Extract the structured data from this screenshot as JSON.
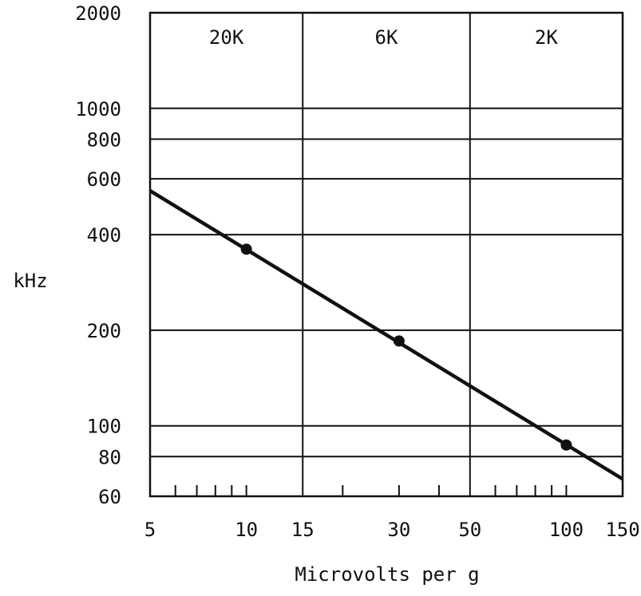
{
  "chart_data": {
    "type": "line",
    "xlabel": "Microvolts per g",
    "ylabel": "kHz",
    "xscale": "log",
    "yscale": "log",
    "xlim": [
      5,
      150
    ],
    "ylim": [
      60,
      2000
    ],
    "grid": true,
    "x_ticks": [
      {
        "value": 5,
        "label": "5"
      },
      {
        "value": 10,
        "label": "10"
      },
      {
        "value": 15,
        "label": "15"
      },
      {
        "value": 30,
        "label": "30"
      },
      {
        "value": 50,
        "label": "50"
      },
      {
        "value": 100,
        "label": "100"
      },
      {
        "value": 150,
        "label": "150"
      }
    ],
    "y_ticks": [
      {
        "value": 2000,
        "label": "2000"
      },
      {
        "value": 1000,
        "label": "1000"
      },
      {
        "value": 800,
        "label": "800"
      },
      {
        "value": 600,
        "label": "600"
      },
      {
        "value": 400,
        "label": "400"
      },
      {
        "value": 200,
        "label": "200"
      },
      {
        "value": 100,
        "label": "100"
      },
      {
        "value": 80,
        "label": "80"
      },
      {
        "value": 60,
        "label": "60"
      }
    ],
    "x_vertical_gridlines": [
      15,
      50
    ],
    "y_horizontal_gridlines": [
      1000,
      800,
      600,
      400,
      200,
      100,
      80
    ],
    "minor_ticks_x": [
      6,
      7,
      8,
      9,
      10,
      20,
      30,
      40,
      60,
      70,
      80,
      90,
      100
    ],
    "bands": [
      {
        "label": "20K",
        "x_from": 5,
        "x_to": 15
      },
      {
        "label": "6K",
        "x_from": 15,
        "x_to": 50
      },
      {
        "label": "2K",
        "x_from": 50,
        "x_to": 150
      }
    ],
    "series": [
      {
        "line": [
          {
            "x": 5,
            "y": 550
          },
          {
            "x": 150,
            "y": 68
          }
        ],
        "points": [
          {
            "x": 10,
            "y": 360
          },
          {
            "x": 30,
            "y": 185
          },
          {
            "x": 100,
            "y": 87
          }
        ]
      }
    ],
    "colors": {
      "ink": "#111111",
      "background": "#ffffff"
    }
  }
}
